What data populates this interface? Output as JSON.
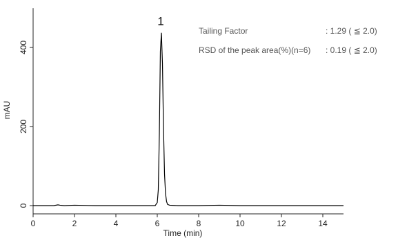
{
  "chart_data": {
    "type": "line",
    "title": "",
    "xlabel": "Time (min)",
    "ylabel": "mAU",
    "xlim": [
      0,
      15
    ],
    "ylim": [
      -25,
      500
    ],
    "x_ticks": [
      "0",
      "2",
      "4",
      "6",
      "8",
      "10",
      "12",
      "14"
    ],
    "y_ticks": [
      "0",
      "200",
      "400"
    ],
    "grid": false,
    "line_color": "#000000",
    "series": [
      {
        "x": [
          0.0,
          1.0,
          1.2,
          1.3,
          1.5,
          2.0,
          3.0,
          4.0,
          5.0,
          5.9,
          6.0,
          6.05,
          6.1,
          6.15,
          6.2,
          6.25,
          6.3,
          6.35,
          6.4,
          6.45,
          6.5,
          6.6,
          7.0,
          8.0,
          9.0,
          10.0,
          11.0,
          12.0,
          13.0,
          14.0,
          15.0
        ],
        "y": [
          0,
          0,
          2,
          1,
          0,
          1,
          0,
          0,
          0,
          0,
          8,
          40,
          180,
          390,
          437,
          360,
          200,
          80,
          30,
          10,
          3,
          1,
          0,
          0,
          1,
          0,
          0,
          0,
          0,
          0,
          0
        ]
      }
    ],
    "peaks": [
      {
        "label": "1",
        "x": 6.2,
        "y": 437
      }
    ],
    "annotations": [
      {
        "label": "Tailing Factor",
        "value": ": 1.29 ( ≦ 2.0)"
      },
      {
        "label": "RSD of the peak area(%)(n=6)",
        "value": ": 0.19 ( ≦ 2.0)"
      }
    ]
  }
}
